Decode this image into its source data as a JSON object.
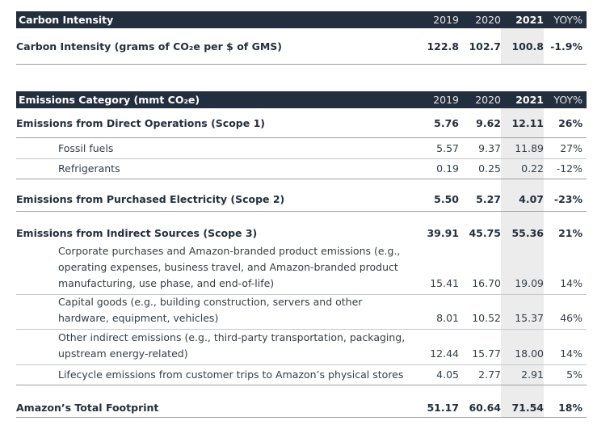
{
  "carbon": {
    "header": {
      "title": "Carbon Intensity",
      "y1": "2019",
      "y2": "2020",
      "y3": "2021",
      "yoy": "YOY%"
    },
    "row": {
      "label": "Carbon Intensity (grams of CO₂e per $ of GMS)",
      "v1": "122.8",
      "v2": "102.7",
      "v3": "100.8",
      "yoy": "-1.9%"
    }
  },
  "emissions": {
    "header": {
      "title": "Emissions Category (mmt CO₂e)",
      "y1": "2019",
      "y2": "2020",
      "y3": "2021",
      "yoy": "YOY%"
    },
    "scope1": {
      "label": "Emissions from Direct Operations (Scope 1)",
      "v1": "5.76",
      "v2": "9.62",
      "v3": "12.11",
      "yoy": "26%",
      "items": [
        {
          "label": "Fossil fuels",
          "v1": "5.57",
          "v2": "9.37",
          "v3": "11.89",
          "yoy": "27%"
        },
        {
          "label": "Refrigerants",
          "v1": "0.19",
          "v2": "0.25",
          "v3": "0.22",
          "yoy": "-12%"
        }
      ]
    },
    "scope2": {
      "label": "Emissions from Purchased Electricity (Scope 2)",
      "v1": "5.50",
      "v2": "5.27",
      "v3": "4.07",
      "yoy": "-23%"
    },
    "scope3": {
      "label": "Emissions from Indirect Sources (Scope 3)",
      "v1": "39.91",
      "v2": "45.75",
      "v3": "55.36",
      "yoy": "21%",
      "items": [
        {
          "label": "Corporate purchases and Amazon-branded product emissions (e.g., operating expenses, business travel, and Amazon-branded product manufacturing, use phase, and end-of-life)",
          "v1": "15.41",
          "v2": "16.70",
          "v3": "19.09",
          "yoy": "14%"
        },
        {
          "label": "Capital goods (e.g., building construction, servers and other hardware, equipment, vehicles)",
          "v1": "8.01",
          "v2": "10.52",
          "v3": "15.37",
          "yoy": "46%"
        },
        {
          "label": "Other indirect emissions (e.g., third-party transportation, packaging, upstream energy-related)",
          "v1": "12.44",
          "v2": "15.77",
          "v3": "18.00",
          "yoy": "14%"
        },
        {
          "label": "Lifecycle emissions from customer trips to Amazon’s physical stores",
          "v1": "4.05",
          "v2": "2.77",
          "v3": "2.91",
          "yoy": "5%"
        }
      ]
    },
    "total": {
      "label": "Amazon’s Total Footprint",
      "v1": "51.17",
      "v2": "60.64",
      "v3": "71.54",
      "yoy": "18%"
    }
  }
}
